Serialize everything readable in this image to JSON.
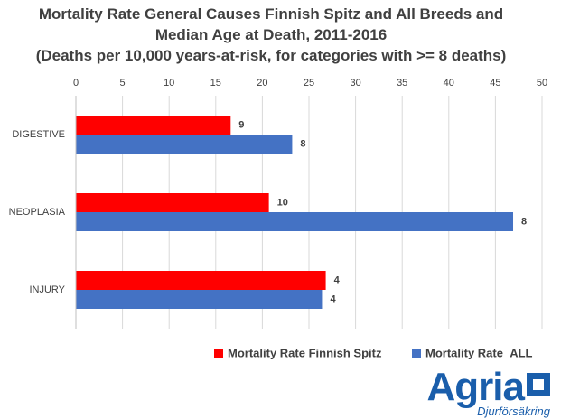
{
  "chart_data": {
    "type": "hbar",
    "title": "Mortality Rate General Causes Finnish Spitz and All Breeds and Median Age at Death, 2011-2016",
    "subtitle": "(Deaths per 10,000 years-at-risk, for categories with >= 8 deaths)",
    "categories": [
      "DIGESTIVE",
      "NEOPLASIA",
      "INJURY"
    ],
    "series": [
      {
        "name": "Mortality Rate Finnish Spitz",
        "color": "#ff0000",
        "values": [
          16.6,
          20.7,
          26.8
        ],
        "data_labels": [
          9,
          10,
          4
        ]
      },
      {
        "name": "Mortality Rate_ALL",
        "color": "#4472c4",
        "values": [
          23.2,
          46.9,
          26.4
        ],
        "data_labels": [
          8,
          8,
          4
        ]
      }
    ],
    "xlim": [
      0,
      50
    ],
    "xticks": [
      0,
      5,
      10,
      15,
      20,
      25,
      30,
      35,
      40,
      45,
      50
    ],
    "grid": true,
    "legend": "bottom"
  },
  "logo": {
    "text": "Agria",
    "tagline": "Djurförsäkring"
  }
}
